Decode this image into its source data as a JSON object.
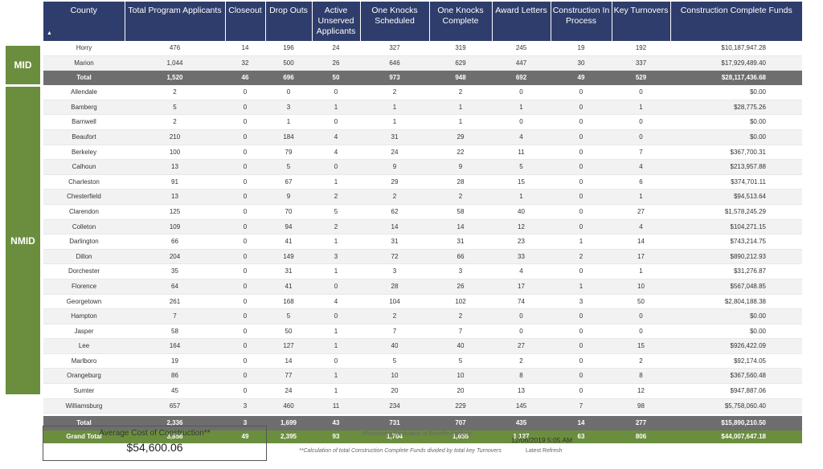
{
  "columns": [
    "County",
    "Total Program Applicants",
    "Closeout",
    "Drop Outs",
    "Active Unserved Applicants",
    "One Knocks Scheduled",
    "One Knocks Complete",
    "Award Letters",
    "Construction In Process",
    "Key Turnovers",
    "Construction Complete Funds"
  ],
  "mid": {
    "label": "MID",
    "rows": [
      [
        "Horry",
        "476",
        "14",
        "196",
        "24",
        "327",
        "319",
        "245",
        "19",
        "192",
        "$10,187,947.28"
      ],
      [
        "Marion",
        "1,044",
        "32",
        "500",
        "26",
        "646",
        "629",
        "447",
        "30",
        "337",
        "$17,929,489.40"
      ]
    ],
    "total": [
      "Total",
      "1,520",
      "46",
      "696",
      "50",
      "973",
      "948",
      "692",
      "49",
      "529",
      "$28,117,436.68"
    ]
  },
  "nmid": {
    "label": "NMID",
    "rows": [
      [
        "Allendale",
        "2",
        "0",
        "0",
        "0",
        "2",
        "2",
        "0",
        "0",
        "0",
        "$0.00"
      ],
      [
        "Bamberg",
        "5",
        "0",
        "3",
        "1",
        "1",
        "1",
        "1",
        "0",
        "1",
        "$28,775.26"
      ],
      [
        "Barnwell",
        "2",
        "0",
        "1",
        "0",
        "1",
        "1",
        "0",
        "0",
        "0",
        "$0.00"
      ],
      [
        "Beaufort",
        "210",
        "0",
        "184",
        "4",
        "31",
        "29",
        "4",
        "0",
        "0",
        "$0.00"
      ],
      [
        "Berkeley",
        "100",
        "0",
        "79",
        "4",
        "24",
        "22",
        "11",
        "0",
        "7",
        "$367,700.31"
      ],
      [
        "Calhoun",
        "13",
        "0",
        "5",
        "0",
        "9",
        "9",
        "5",
        "0",
        "4",
        "$213,957.88"
      ],
      [
        "Charleston",
        "91",
        "0",
        "67",
        "1",
        "29",
        "28",
        "15",
        "0",
        "6",
        "$374,701.11"
      ],
      [
        "Chesterfield",
        "13",
        "0",
        "9",
        "2",
        "2",
        "2",
        "1",
        "0",
        "1",
        "$94,513.64"
      ],
      [
        "Clarendon",
        "125",
        "0",
        "70",
        "5",
        "62",
        "58",
        "40",
        "0",
        "27",
        "$1,578,245.29"
      ],
      [
        "Colleton",
        "109",
        "0",
        "94",
        "2",
        "14",
        "14",
        "12",
        "0",
        "4",
        "$104,271.15"
      ],
      [
        "Darlington",
        "66",
        "0",
        "41",
        "1",
        "31",
        "31",
        "23",
        "1",
        "14",
        "$743,214.75"
      ],
      [
        "Dillon",
        "204",
        "0",
        "149",
        "3",
        "72",
        "66",
        "33",
        "2",
        "17",
        "$890,212.93"
      ],
      [
        "Dorchester",
        "35",
        "0",
        "31",
        "1",
        "3",
        "3",
        "4",
        "0",
        "1",
        "$31,276.87"
      ],
      [
        "Florence",
        "64",
        "0",
        "41",
        "0",
        "28",
        "26",
        "17",
        "1",
        "10",
        "$567,048.85"
      ],
      [
        "Georgetown",
        "261",
        "0",
        "168",
        "4",
        "104",
        "102",
        "74",
        "3",
        "50",
        "$2,804,188.38"
      ],
      [
        "Hampton",
        "7",
        "0",
        "5",
        "0",
        "2",
        "2",
        "0",
        "0",
        "0",
        "$0.00"
      ],
      [
        "Jasper",
        "58",
        "0",
        "50",
        "1",
        "7",
        "7",
        "0",
        "0",
        "0",
        "$0.00"
      ],
      [
        "Lee",
        "164",
        "0",
        "127",
        "1",
        "40",
        "40",
        "27",
        "0",
        "15",
        "$926,422.09"
      ],
      [
        "Marlboro",
        "19",
        "0",
        "14",
        "0",
        "5",
        "5",
        "2",
        "0",
        "2",
        "$92,174.05"
      ],
      [
        "Orangeburg",
        "86",
        "0",
        "77",
        "1",
        "10",
        "10",
        "8",
        "0",
        "8",
        "$367,560.48"
      ],
      [
        "Sumter",
        "45",
        "0",
        "24",
        "1",
        "20",
        "20",
        "13",
        "0",
        "12",
        "$947,887.06"
      ],
      [
        "Williamsburg",
        "657",
        "3",
        "460",
        "11",
        "234",
        "229",
        "145",
        "7",
        "98",
        "$5,758,060.40"
      ]
    ],
    "total": [
      "Total",
      "2,336",
      "3",
      "1,699",
      "43",
      "731",
      "707",
      "435",
      "14",
      "277",
      "$15,890,210.50"
    ]
  },
  "grand_total": [
    "Grand Total",
    "3,856",
    "49",
    "2,395",
    "93",
    "1,704",
    "1,655",
    "1,127",
    "63",
    "806",
    "$44,007,647.18"
  ],
  "avg_card": {
    "title": "Average Cost of Construction**",
    "value": "$54,600.06"
  },
  "notes": {
    "duplication": "*Processing Duplication of Benefits Analysis",
    "calculation": "**Calculation of total Construction Complete Funds divided by total key Turnovers"
  },
  "refresh": {
    "date": "12/06/2019 5:05 AM",
    "label": "Latest  Refresh"
  },
  "colors": {
    "header": "#2e3d6b",
    "accent_green": "#6b8e3e",
    "subtotal_gray": "#6e6e6e"
  }
}
